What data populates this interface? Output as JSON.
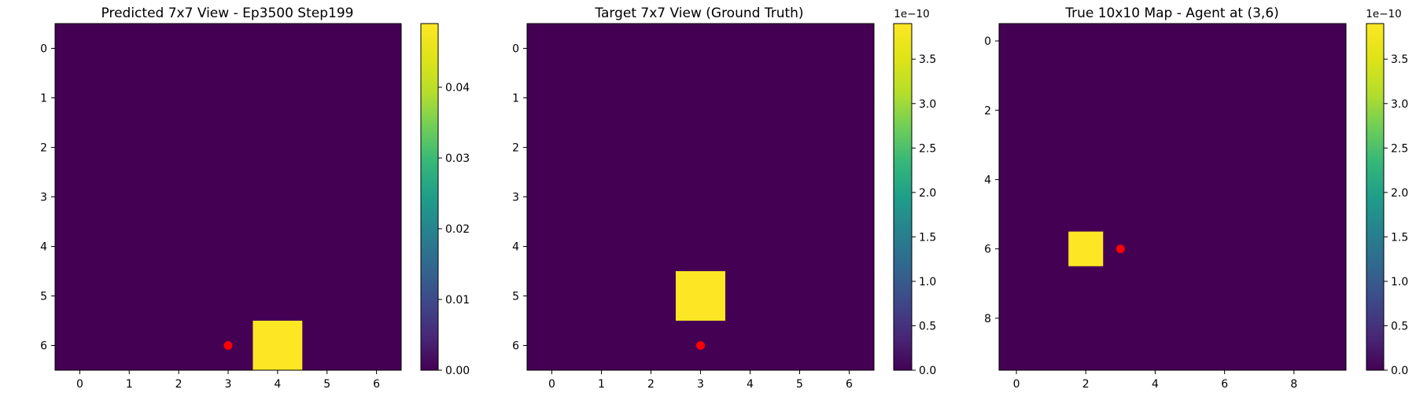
{
  "chart_data": [
    {
      "type": "heatmap",
      "title": "Predicted 7x7 View - Ep3500 Step199",
      "grid": [
        7,
        7
      ],
      "xticks": [
        "0",
        "1",
        "2",
        "3",
        "4",
        "5",
        "6"
      ],
      "yticks": [
        "0",
        "1",
        "2",
        "3",
        "4",
        "5",
        "6"
      ],
      "xlim": [
        -0.5,
        6.5
      ],
      "ylim": [
        6.5,
        -0.5
      ],
      "nonzero_cells": [
        {
          "row": 6,
          "col": 4,
          "value": 0.049
        }
      ],
      "background_value": 0.0,
      "agent_marker": {
        "x": 3,
        "y": 6,
        "color": "#ff0000"
      },
      "colorbar": {
        "range": [
          0.0,
          0.049
        ],
        "ticks": [
          "0.00",
          "0.01",
          "0.02",
          "0.03",
          "0.04"
        ],
        "exponent": ""
      },
      "colormap": "viridis"
    },
    {
      "type": "heatmap",
      "title": "Target 7x7 View (Ground Truth)",
      "grid": [
        7,
        7
      ],
      "xticks": [
        "0",
        "1",
        "2",
        "3",
        "4",
        "5",
        "6"
      ],
      "yticks": [
        "0",
        "1",
        "2",
        "3",
        "4",
        "5",
        "6"
      ],
      "xlim": [
        -0.5,
        6.5
      ],
      "ylim": [
        6.5,
        -0.5
      ],
      "nonzero_cells": [
        {
          "row": 5,
          "col": 3,
          "value": 3.9e-10
        }
      ],
      "background_value": 0.0,
      "agent_marker": {
        "x": 3,
        "y": 6,
        "color": "#ff0000"
      },
      "colorbar": {
        "range": [
          0.0,
          3.9
        ],
        "ticks": [
          "0.0",
          "0.5",
          "1.0",
          "1.5",
          "2.0",
          "2.5",
          "3.0",
          "3.5"
        ],
        "exponent": "1e−10"
      },
      "colormap": "viridis"
    },
    {
      "type": "heatmap",
      "title": "True 10x10 Map - Agent at (3,6)",
      "grid": [
        10,
        10
      ],
      "xticks": [
        "0",
        "2",
        "4",
        "6",
        "8"
      ],
      "yticks": [
        "0",
        "2",
        "4",
        "6",
        "8"
      ],
      "xlim": [
        -0.5,
        9.5
      ],
      "ylim": [
        9.5,
        -0.5
      ],
      "nonzero_cells": [
        {
          "row": 6,
          "col": 2,
          "value": 3.9e-10
        }
      ],
      "background_value": 0.0,
      "agent_marker": {
        "x": 3,
        "y": 6,
        "color": "#ff0000"
      },
      "colorbar": {
        "range": [
          0.0,
          3.9
        ],
        "ticks": [
          "0.0",
          "0.5",
          "1.0",
          "1.5",
          "2.0",
          "2.5",
          "3.0",
          "3.5"
        ],
        "exponent": "1e−10"
      },
      "colormap": "viridis"
    }
  ],
  "colors": {
    "low": "#440154",
    "high": "#fde725",
    "marker": "#ff0000"
  }
}
